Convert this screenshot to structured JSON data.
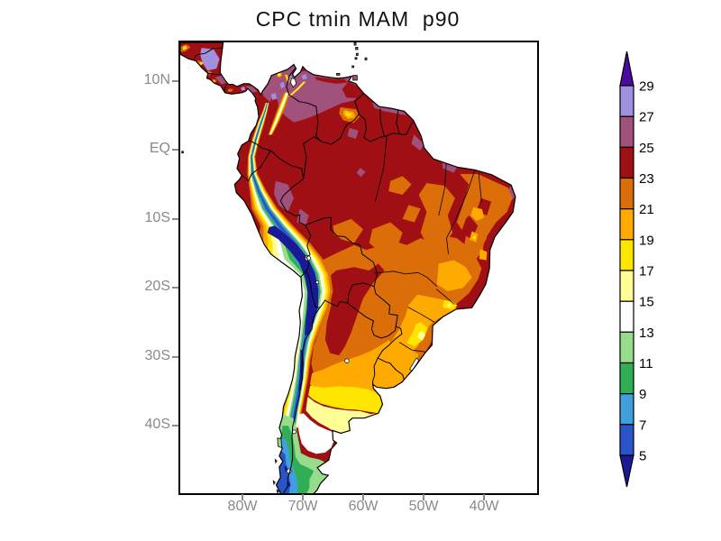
{
  "title": "CPC tmin MAM  p90",
  "axes": {
    "lat": [
      {
        "label": "10N",
        "deg": 10
      },
      {
        "label": "EQ",
        "deg": 0
      },
      {
        "label": "10S",
        "deg": -10
      },
      {
        "label": "20S",
        "deg": -20
      },
      {
        "label": "30S",
        "deg": -30
      },
      {
        "label": "40S",
        "deg": -40
      }
    ],
    "lon": [
      {
        "label": "80W",
        "deg": -80
      },
      {
        "label": "70W",
        "deg": -70
      },
      {
        "label": "60W",
        "deg": -60
      },
      {
        "label": "50W",
        "deg": -50
      },
      {
        "label": "40W",
        "deg": -40
      }
    ]
  },
  "colorbar": {
    "labels_top_to_bottom": [
      "29",
      "27",
      "25",
      "23",
      "21",
      "19",
      "17",
      "15",
      "13",
      "11",
      "9",
      "7",
      "5"
    ],
    "segment_colors_top_to_bottom": [
      "#a18fe0",
      "#a0517c",
      "#a00f14",
      "#dc6e0a",
      "#ffaa00",
      "#ffe600",
      "#ffff96",
      "#ffffff",
      "#96dc8c",
      "#2fae55",
      "#3fa0dc",
      "#2a55c8"
    ],
    "arrow_top_color": "#4c0ba0",
    "arrow_bottom_color": "#1a1a96"
  },
  "chart_data": {
    "type": "heatmap",
    "subtype": "filled-contour-map",
    "title": "CPC tmin MAM  p90",
    "variable": "tmin",
    "season": "MAM",
    "statistic": "p90",
    "dataset_label": "CPC",
    "region": "South America",
    "lon_range_deg": [
      -90.3,
      -31.2
    ],
    "lat_range_deg": [
      -49.8,
      15.6
    ],
    "contour_levels": [
      5,
      7,
      9,
      11,
      13,
      15,
      17,
      19,
      21,
      23,
      25,
      27,
      29
    ],
    "xticks": [
      "80W",
      "70W",
      "60W",
      "50W",
      "40W"
    ],
    "yticks": [
      "10N",
      "EQ",
      "10S",
      "20S",
      "30S",
      "40S"
    ],
    "grid": false,
    "legend_position": "right-colorbar",
    "palette_map": {
      "navy": "#1a1a96",
      "blue": "#2a55c8",
      "lblue": "#3fa0dc",
      "green": "#2fae55",
      "lgreen": "#96dc8c",
      "white": "#ffffff",
      "pale": "#ffff96",
      "yellow": "#ffe600",
      "oy": "#ffaa00",
      "orange": "#dc6e0a",
      "dred": "#a00f14",
      "mauve": "#a0517c",
      "lav": "#a18fe0",
      "violet": "#4c0ba0"
    },
    "level_color_bins": [
      {
        "range": "<5",
        "color": "#1a1a96"
      },
      {
        "range": "5-7",
        "color": "#2a55c8"
      },
      {
        "range": "7-9",
        "color": "#3fa0dc"
      },
      {
        "range": "9-11",
        "color": "#2fae55"
      },
      {
        "range": "11-13",
        "color": "#96dc8c"
      },
      {
        "range": "13-15",
        "color": "#ffffff"
      },
      {
        "range": "15-17",
        "color": "#ffff96"
      },
      {
        "range": "17-19",
        "color": "#ffe600"
      },
      {
        "range": "19-21",
        "color": "#ffaa00"
      },
      {
        "range": "21-23",
        "color": "#dc6e0a"
      },
      {
        "range": "23-25",
        "color": "#a00f14"
      },
      {
        "range": "25-27",
        "color": "#a0517c"
      },
      {
        "range": "27-29",
        "color": "#a18fe0"
      },
      {
        "range": ">29",
        "color": "#4c0ba0"
      }
    ],
    "features": [
      {
        "region": "Amazon basin and most of tropical Brazil",
        "value_bin": "23-25"
      },
      {
        "region": "Venezuela llanos and northern Colombia lowlands",
        "value_bin": "25-27"
      },
      {
        "region": "Caribbean coastal spots, Nicaragua patch",
        "value_bin": "27-29"
      },
      {
        "region": "Central Brazil cerrado patches and NE interior",
        "value_bin": "21-23"
      },
      {
        "region": "Guiana highlands patch",
        "value_bin": "17-21"
      },
      {
        "region": "Gran Chaco / NW Argentina warm tongue",
        "value_bin": "23-25"
      },
      {
        "region": "SE Brazil highlands",
        "value_bin": "17-21"
      },
      {
        "region": "Uruguay and Pampas",
        "value_bin": "17-21"
      },
      {
        "region": "Central Argentina ~35-40S",
        "value_bin": "13-17"
      },
      {
        "region": "Patagonia",
        "value_bin": "5-13"
      },
      {
        "region": "Andes Altiplano core (Peru/Bolivia/N Chile)",
        "value_bin": "<5-7"
      },
      {
        "region": "Atacama / central Chile coast",
        "value_bin": "13-17"
      }
    ]
  }
}
